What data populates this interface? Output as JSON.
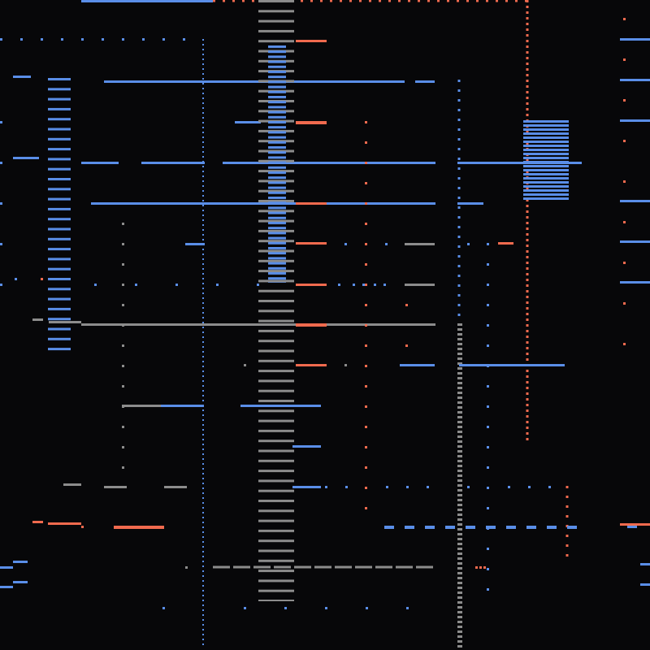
{
  "screen": {
    "background": "#070709",
    "palette": {
      "blue": "#5a8ee8",
      "orange": "#f06a4e",
      "gray": "#8c8c8c"
    }
  }
}
